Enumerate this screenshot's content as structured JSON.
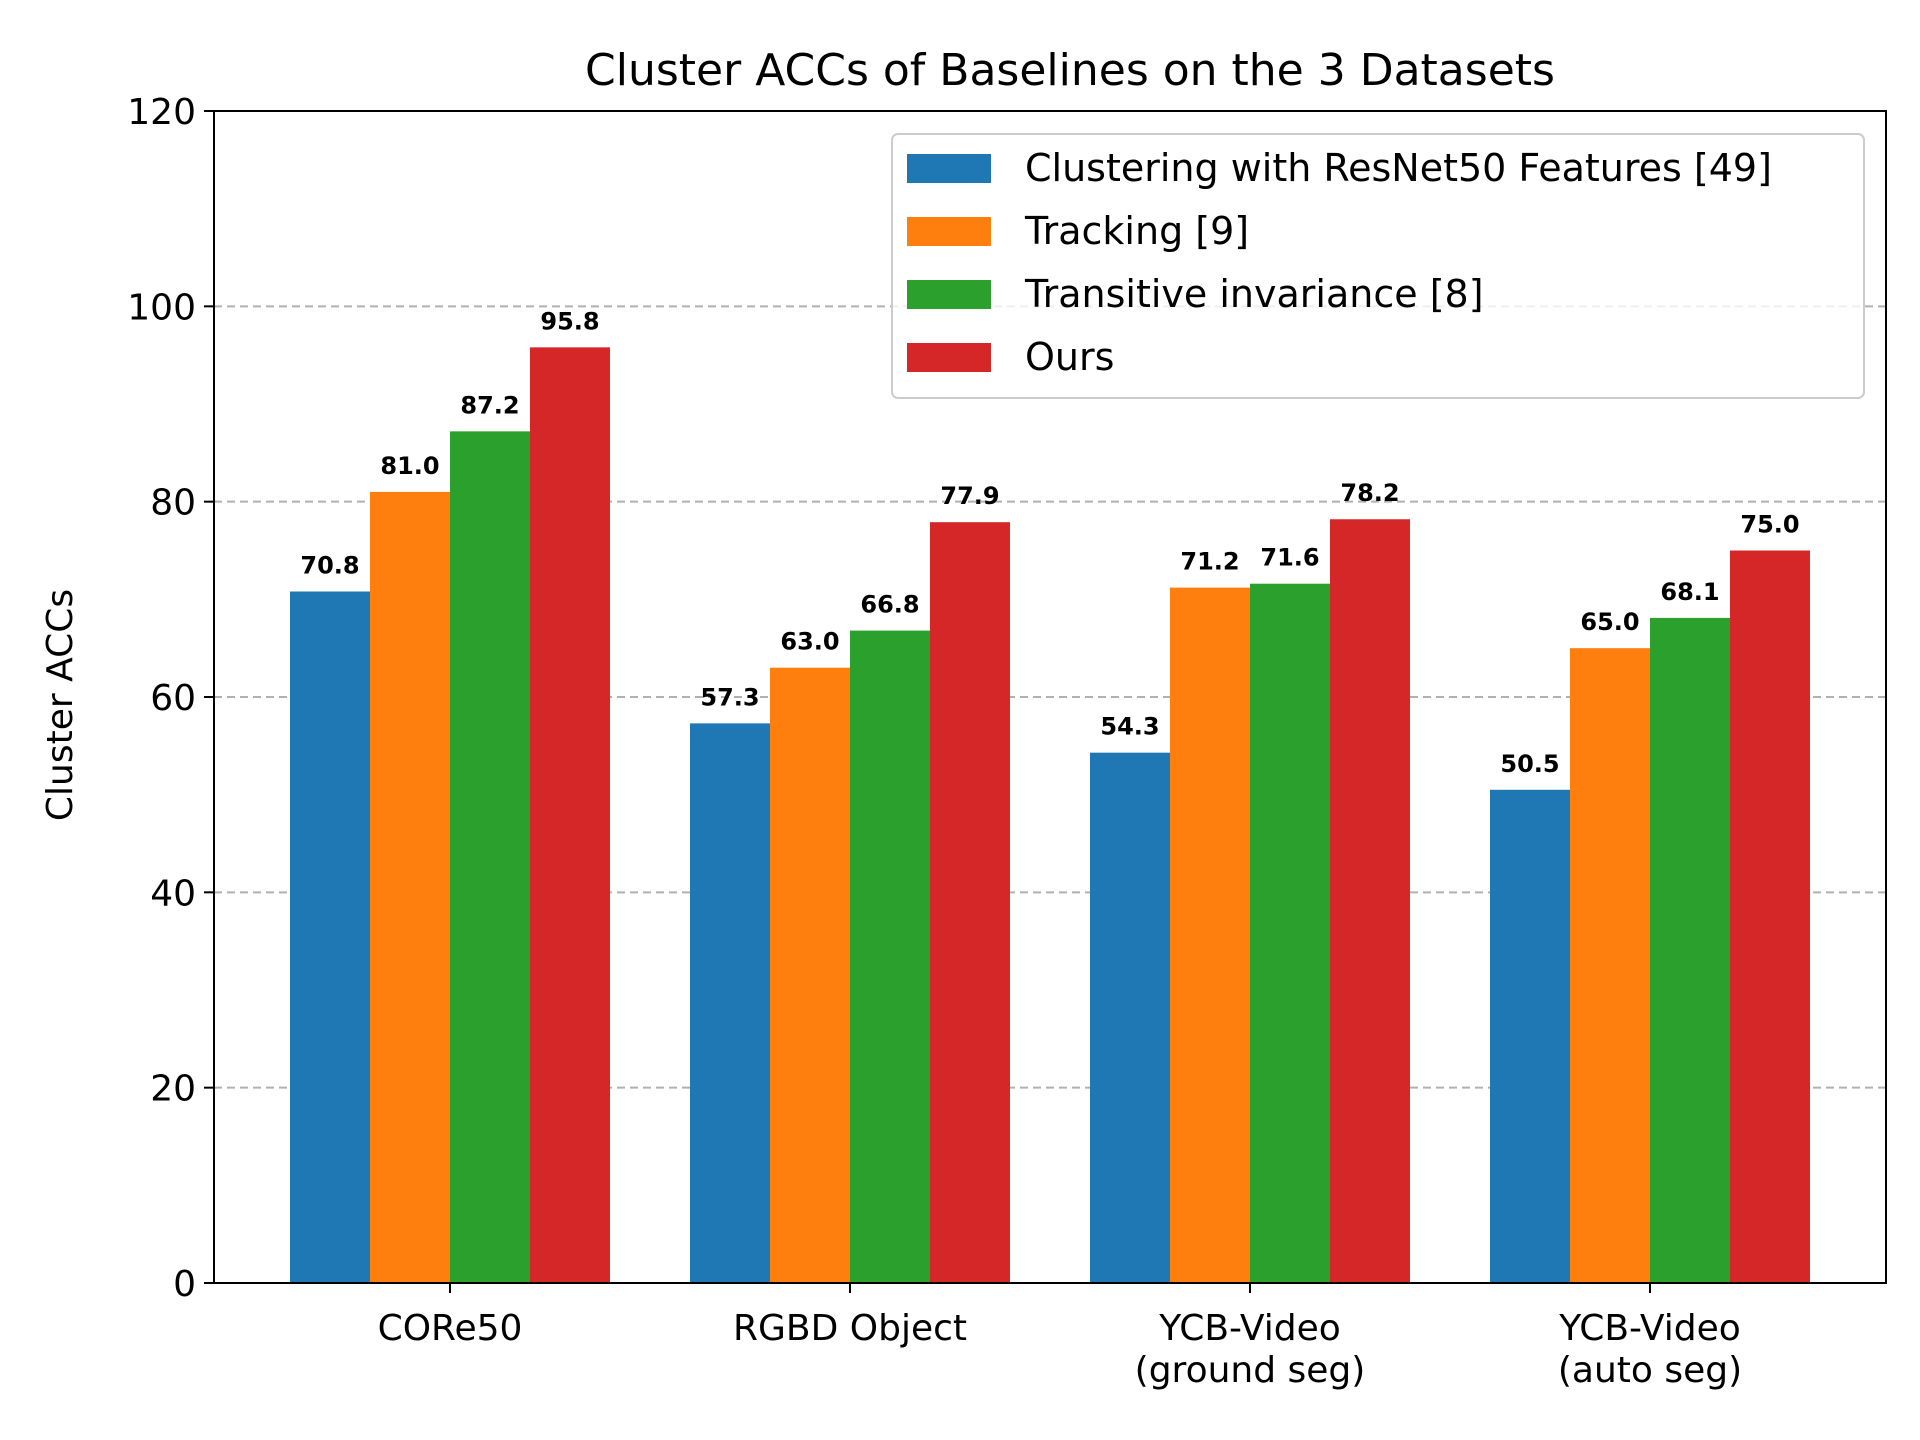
{
  "chart_data": {
    "type": "bar",
    "title": "Cluster ACCs of Baselines on the 3 Datasets",
    "xlabel": "",
    "ylabel": "Cluster ACCs",
    "ylim": [
      0,
      120
    ],
    "yticks": [
      0,
      20,
      40,
      60,
      80,
      100,
      120
    ],
    "grid": "y-dashed",
    "legend_position": "top-right",
    "categories": [
      [
        "CORe50"
      ],
      [
        "RGBD Object"
      ],
      [
        "YCB-Video",
        "(ground seg)"
      ],
      [
        "YCB-Video",
        "(auto seg)"
      ]
    ],
    "series": [
      {
        "name": "Clustering with ResNet50 Features [49]",
        "color": "#1f77b4",
        "values": [
          70.8,
          57.3,
          54.3,
          50.5
        ]
      },
      {
        "name": "Tracking [9]",
        "color": "#ff7f0e",
        "values": [
          81.0,
          63.0,
          71.2,
          65.0
        ]
      },
      {
        "name": "Transitive invariance [8]",
        "color": "#2ca02c",
        "values": [
          87.2,
          66.8,
          71.6,
          68.1
        ]
      },
      {
        "name": "Ours",
        "color": "#d62728",
        "values": [
          95.8,
          77.9,
          78.2,
          75.0
        ]
      }
    ]
  }
}
